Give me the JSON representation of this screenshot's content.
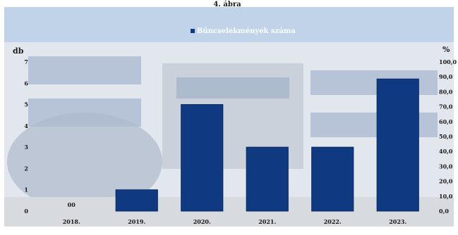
{
  "header": {
    "title": "4. ábra"
  },
  "colors": {
    "bar": "#0f3a82",
    "bar_edge": "#0a2a61"
  },
  "chart_data": {
    "type": "bar",
    "categories": [
      "2018.",
      "2019.",
      "2020.",
      "2021.",
      "2022.",
      "2023."
    ],
    "series": [
      {
        "name": "Bűncselekmények száma",
        "values": [
          0,
          1,
          5,
          3,
          3,
          6.2
        ]
      }
    ],
    "value_labels": [
      "00",
      "",
      "",
      "",
      "",
      ""
    ],
    "left_axis": {
      "label": "db",
      "ticks": [
        "0",
        "1",
        "2",
        "3",
        "4",
        "5",
        "6",
        "7"
      ],
      "ylim": [
        0,
        7
      ]
    },
    "right_axis": {
      "label": "%",
      "ticks": [
        "0,0",
        "10,0",
        "20,0",
        "30,0",
        "40,0",
        "50,0",
        "60,0",
        "70,0",
        "80,0",
        "90,0",
        "100,0"
      ],
      "ylim": [
        0,
        100
      ]
    },
    "legend": "top-center",
    "grid": false
  }
}
